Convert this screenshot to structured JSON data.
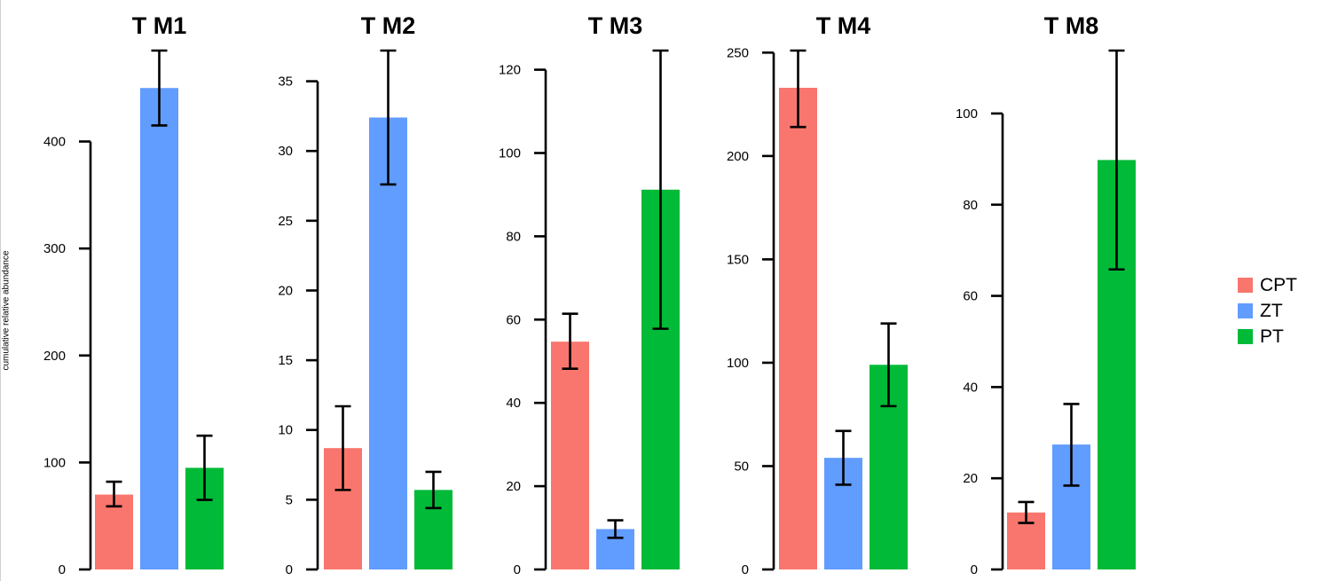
{
  "ylabel": "cumulative relative abundance",
  "legend": {
    "items": [
      {
        "label": "CPT",
        "color": "#F8766D"
      },
      {
        "label": "ZT",
        "color": "#619CFF"
      },
      {
        "label": "PT",
        "color": "#00BA38"
      }
    ]
  },
  "chart_data": [
    {
      "type": "bar",
      "title": "T M1",
      "categories": [
        "CPT",
        "ZT",
        "PT"
      ],
      "values": [
        70,
        450,
        95
      ],
      "error_low": [
        59,
        415,
        65
      ],
      "error_high": [
        82,
        485,
        125
      ],
      "ylim": [
        0,
        485
      ],
      "yticks": [
        0,
        100,
        200,
        300,
        400
      ],
      "ytick_labels": [
        "0",
        "100",
        "200",
        "300",
        "400"
      ]
    },
    {
      "type": "bar",
      "title": "T M2",
      "categories": [
        "CPT",
        "ZT",
        "PT"
      ],
      "values": [
        8.7,
        32.4,
        5.7
      ],
      "error_low": [
        5.7,
        27.6,
        4.4
      ],
      "error_high": [
        11.7,
        37.2,
        7.0
      ],
      "ylim": [
        0,
        37.2
      ],
      "yticks": [
        0,
        5,
        10,
        15,
        20,
        25,
        30,
        35
      ],
      "ytick_labels": [
        "0",
        "5",
        "10",
        "15",
        "20",
        "25",
        "30",
        "35"
      ]
    },
    {
      "type": "bar",
      "title": "T M3",
      "categories": [
        "CPT",
        "ZT",
        "PT"
      ],
      "values": [
        54.7,
        9.7,
        91.2
      ],
      "error_low": [
        48.2,
        7.6,
        57.8
      ],
      "error_high": [
        61.4,
        11.8,
        124.6
      ],
      "ylim": [
        0,
        124.6
      ],
      "yticks": [
        0,
        20,
        40,
        60,
        80,
        100,
        120
      ],
      "ytick_labels": [
        "0",
        "20",
        "40",
        "60",
        "80",
        "100",
        "120"
      ]
    },
    {
      "type": "bar",
      "title": "T M4",
      "categories": [
        "CPT",
        "ZT",
        "PT"
      ],
      "values": [
        233,
        54,
        99
      ],
      "error_low": [
        214,
        41,
        79
      ],
      "error_high": [
        251,
        67,
        119
      ],
      "ylim": [
        0,
        251
      ],
      "yticks": [
        0,
        50,
        100,
        150,
        200,
        250
      ],
      "ytick_labels": [
        "0",
        "50",
        "100",
        "150",
        "200",
        "250"
      ]
    },
    {
      "type": "bar",
      "title": "T M8",
      "categories": [
        "CPT",
        "ZT",
        "PT"
      ],
      "values": [
        12.5,
        27.4,
        89.8
      ],
      "error_low": [
        10.2,
        18.4,
        65.8
      ],
      "error_high": [
        14.8,
        36.3,
        113.8
      ],
      "ylim": [
        0,
        113.8
      ],
      "yticks": [
        0,
        20,
        40,
        60,
        80,
        100
      ],
      "ytick_labels": [
        "0",
        "20",
        "40",
        "60",
        "80",
        "100"
      ]
    }
  ]
}
